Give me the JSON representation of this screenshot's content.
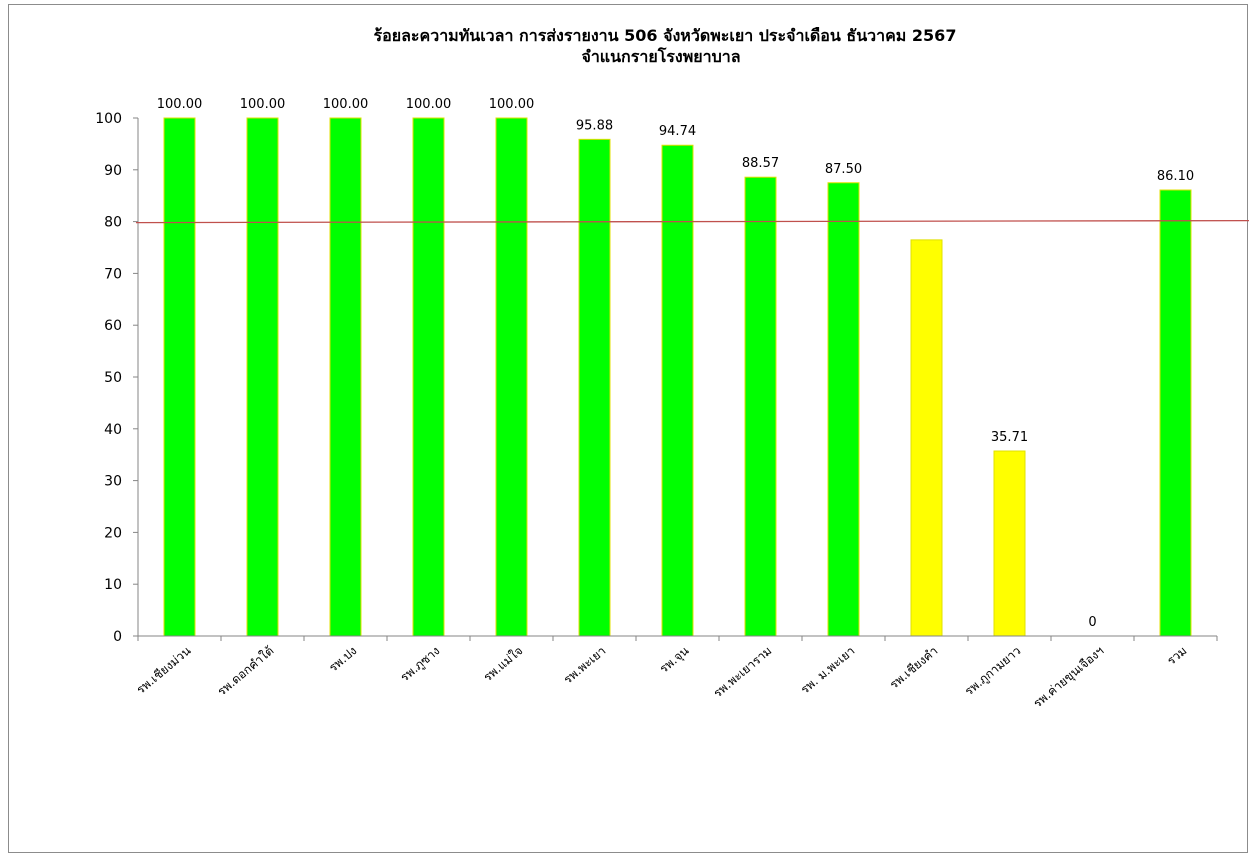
{
  "chart_data": {
    "type": "bar",
    "title": "ร้อยละความทันเวลา การส่งรายงาน 506 จังหวัดพะเยา  ประจำเดือน ธันวาคม 2567",
    "subtitle": "จำแนกรายโรงพยาบาล",
    "xlabel": "",
    "ylabel": "",
    "ylim": [
      0,
      100
    ],
    "yticks": [
      "0",
      "10",
      "20",
      "30",
      "40",
      "50",
      "60",
      "70",
      "80",
      "90",
      "100"
    ],
    "categories": [
      "รพ.เชียงม่วน",
      "รพ.ดอกคำใต้",
      "รพ.ปง",
      "รพ.ภูซาง",
      "รพ.แม่ใจ",
      "รพ.พะเยา",
      "รพ.จุน",
      "รพ.พะเยาราม",
      "รพ. ม.พะเยา",
      "รพ.เชียงคำ",
      "รพ.ภูกามยาว",
      "รพ.ค่ายขุนเจืองฯ",
      "รวม"
    ],
    "values": [
      100,
      100,
      100,
      100,
      100,
      95.88,
      94.74,
      88.57,
      87.5,
      76.47,
      35.71,
      0,
      86.1
    ],
    "data_labels": [
      "100.00",
      "100.00",
      "100.00",
      "100.00",
      "100.00",
      "95.88",
      "94.74",
      "88.57",
      "87.50",
      "",
      "35.71",
      "0",
      "86.10"
    ],
    "bar_colors": [
      "#00ff00",
      "#00ff00",
      "#00ff00",
      "#00ff00",
      "#00ff00",
      "#00ff00",
      "#00ff00",
      "#00ff00",
      "#00ff00",
      "#ffff00",
      "#ffff00",
      "#ffff00",
      "#00ff00"
    ],
    "bar_outline_color": "#e0e000",
    "target_line": {
      "value": 80,
      "color": "#c0504d"
    },
    "grid": false,
    "legend": "none"
  }
}
